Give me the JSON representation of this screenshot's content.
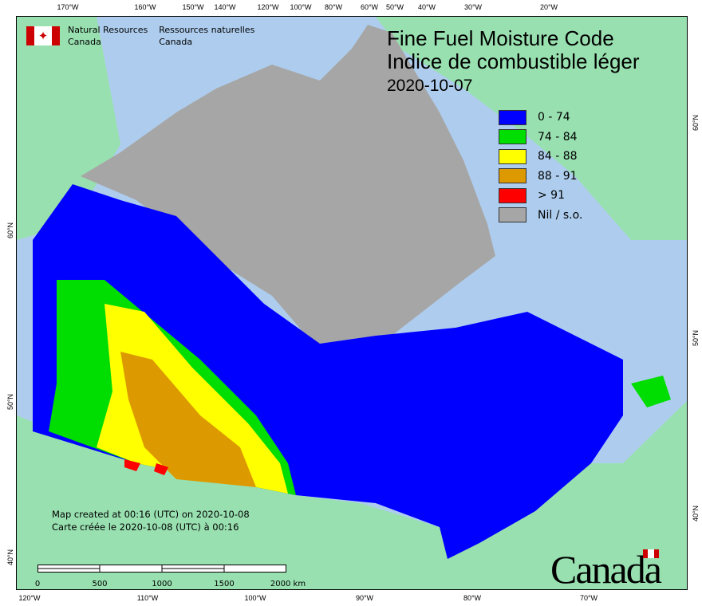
{
  "title": {
    "en": "Fine Fuel Moisture Code",
    "fr": "Indice de combustible léger",
    "date": "2020-10-07"
  },
  "agency": {
    "en1": "Natural Resources",
    "en2": "Canada",
    "fr1": "Ressources naturelles",
    "fr2": "Canada"
  },
  "legend": [
    {
      "label": "0 - 74",
      "color": "#0000ff"
    },
    {
      "label": "74 - 84",
      "color": "#00dd00"
    },
    {
      "label": "84 - 88",
      "color": "#ffff00"
    },
    {
      "label": "88 - 91",
      "color": "#dd9900"
    },
    {
      "label": "> 91",
      "color": "#ff0000"
    },
    {
      "label": "Nil / s.o.",
      "color": "#a6a6a6"
    }
  ],
  "created": {
    "en": "Map created at 00:16 (UTC) on 2020-10-08",
    "fr": "Carte créée le 2020-10-08 (UTC) à 00:16"
  },
  "scale": {
    "labels": [
      "0",
      "500",
      "1000",
      "1500",
      "2000  km"
    ]
  },
  "axes": {
    "top": [
      "170°W",
      "160°W",
      "150°W",
      "140°W",
      "120°W",
      "100°W",
      "80°W",
      "60°W",
      "50°W",
      "40°W",
      "30°W",
      "20°W"
    ],
    "bottom": [
      "120°W",
      "110°W",
      "100°W",
      "90°W",
      "80°W",
      "70°W"
    ],
    "left": [
      "60°N",
      "50°N",
      "40°N"
    ],
    "right": [
      "60°N",
      "50°N",
      "40°N"
    ]
  },
  "wordmark": "Canada",
  "colors": {
    "ocean": "#aecdee",
    "land_other": "#98e0b0",
    "no_data": "#a6a6a6"
  }
}
